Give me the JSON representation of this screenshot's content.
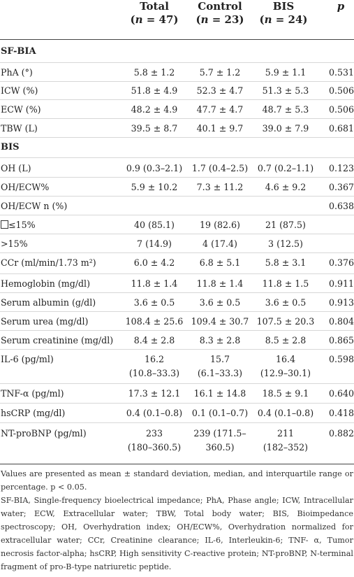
{
  "header": {
    "total_label": "Total",
    "total_n": "47",
    "control_label": "Control",
    "control_n": "23",
    "bis_label": "BIS",
    "bis_n": "24",
    "p_label": "p",
    "n_prefix": "(n = ",
    "n_suffix": ")"
  },
  "sections": {
    "sfbia": "SF-BIA",
    "bis": "BIS"
  },
  "rows": [
    {
      "label": "PhA (°)",
      "total": "5.8 ± 1.2",
      "control": "5.7 ± 1.2",
      "bis": "5.9 ± 1.1",
      "p": "0.531"
    },
    {
      "label": "ICW (%)",
      "total": "51.8 ± 4.9",
      "control": "52.3 ± 4.7",
      "bis": "51.3 ± 5.3",
      "p": "0.506"
    },
    {
      "label": "ECW (%)",
      "total": "48.2 ± 4.9",
      "control": "47.7 ± 4.7",
      "bis": "48.7 ± 5.3",
      "p": "0.506"
    },
    {
      "label": "TBW (L)",
      "total": "39.5 ± 8.7",
      "control": "40.1 ± 9.7",
      "bis": "39.0 ± 7.9",
      "p": "0.681"
    },
    {
      "label": "OH (L)",
      "total": "0.9 (0.3–2.1)",
      "control": "1.7 (0.4–2.5)",
      "bis": "0.7 (0.2–1.1)",
      "p": "0.123"
    },
    {
      "label": "OH/ECW%",
      "total": "5.9 ± 10.2",
      "control": "7.3 ± 11.2",
      "bis": "4.6 ± 9.2",
      "p": "0.367"
    },
    {
      "label": "OH/ECW n (%)",
      "total": "",
      "control": "",
      "bis": "",
      "p": "0.638"
    },
    {
      "label": "≤15%",
      "total": "40 (85.1)",
      "control": "19 (82.6)",
      "bis": "21 (87.5)",
      "p": ""
    },
    {
      "label": ">15%",
      "total": "7 (14.9)",
      "control": "4 (17.4)",
      "bis": "3 (12.5)",
      "p": ""
    },
    {
      "label": "CCr (ml/min/1.73 m²)",
      "total": "6.0 ± 4.2",
      "control": "6.8 ± 5.1",
      "bis": "5.8 ± 3.1",
      "p": "0.376"
    },
    {
      "label": "Hemoglobin (mg/dl)",
      "total": "11.8 ± 1.4",
      "control": "11.8 ± 1.4",
      "bis": "11.8 ± 1.5",
      "p": "0.911"
    },
    {
      "label": "Serum albumin (g/dl)",
      "total": "3.6 ± 0.5",
      "control": "3.6 ± 0.5",
      "bis": "3.6 ± 0.5",
      "p": "0.913"
    },
    {
      "label": "Serum urea (mg/dl)",
      "total": "108.4 ± 25.6",
      "control": "109.4 ± 30.7",
      "bis": "107.5 ± 20.3",
      "p": "0.804"
    },
    {
      "label": "Serum creatinine (mg/dl)",
      "total": "8.4 ± 2.8",
      "control": "8.3 ± 2.8",
      "bis": "8.5 ± 2.8",
      "p": "0.865"
    },
    {
      "label": "IL-6 (pg/ml)",
      "total": "16.2",
      "total2": "(10.8–33.3)",
      "control": "15.7",
      "control2": "(6.1–33.3)",
      "bis": "16.4",
      "bis2": "(12.9–30.1)",
      "p": "0.598"
    },
    {
      "label": "TNF-α (pg/ml)",
      "total": "17.3 ± 12.1",
      "control": "16.1 ± 14.8",
      "bis": "18.5 ± 9.1",
      "p": "0.640"
    },
    {
      "label": "hsCRP (mg/dl)",
      "total": "0.4 (0.1–0.8)",
      "control": "0.1 (0.1–0.7)",
      "bis": "0.4 (0.1–0.8)",
      "p": "0.418"
    },
    {
      "label": "NT-proBNP (pg/ml)",
      "total": "233",
      "total2": "(180–360.5)",
      "control": "239 (171.5–",
      "control2": "360.5)",
      "bis": "211",
      "bis2": "(182–352)",
      "p": "0.882"
    }
  ],
  "footnotes": {
    "values": "Values are presented as mean ± standard deviation, median, and interquartile range or percentage. p < 0.05.",
    "abbreviations": "SF-BIA, Single-frequency bioelectrical impedance; PhA, Phase angle; ICW, Intracellular water; ECW, Extracellular water; TBW, Total body water; BIS, Bioimpedance spectroscopy; OH, Overhydration index; OH/ECW%, Overhydration normalized for extracellular water; CCr, Creatinine clearance; IL-6, Interleukin-6; TNF- α, Tumor necrosis factor-alpha; hsCRP, High sensitivity C-reactive protein; NT-proBNP, N-terminal fragment of pro-B-type natriuretic peptide."
  }
}
